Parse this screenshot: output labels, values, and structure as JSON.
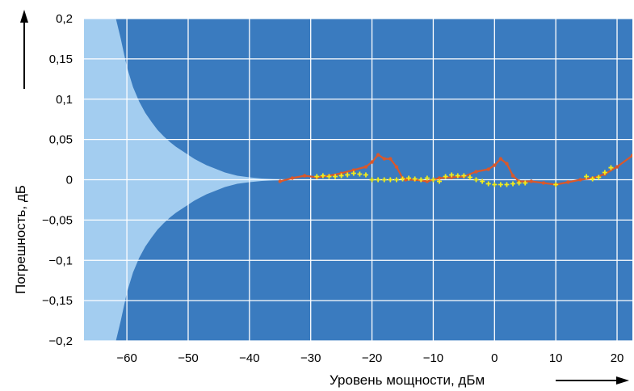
{
  "chart_data": {
    "type": "line",
    "title": "",
    "xlabel": "Уровень мощности, дБм",
    "ylabel": "Погрешность, дБ",
    "xlim": [
      -67,
      22.5
    ],
    "ylim": [
      -0.2,
      0.2
    ],
    "x_ticks": [
      -60,
      -50,
      -40,
      -30,
      -20,
      -10,
      0,
      10,
      20
    ],
    "y_ticks": [
      0.2,
      0.15,
      0.1,
      0.05,
      0,
      -0.05,
      -0.1,
      -0.15,
      -0.2
    ],
    "x_tick_labels": [
      "−60",
      "−50",
      "−40",
      "−30",
      "−20",
      "−10",
      "0",
      "10",
      "20"
    ],
    "y_tick_labels": [
      "0,2",
      "0,15",
      "0,1",
      "0,05",
      "0",
      "−0,05",
      "−0,1",
      "−0,15",
      "−0,2"
    ],
    "grid": true,
    "colors": {
      "background": "#3a7bbf",
      "uncertainty_band": "#a3cdf0",
      "grid": "#ffffff",
      "orange_series": "#d9582b",
      "yellow_series": "#f2ec1a"
    },
    "uncertainty_band": {
      "x": [
        -67,
        -61.8,
        -61,
        -60,
        -59,
        -58,
        -57,
        -56,
        -55,
        -54,
        -53,
        -52,
        -51,
        -50,
        -49,
        -48,
        -47,
        -46,
        -45,
        -44,
        -43,
        -42,
        -41,
        -40,
        -38,
        -36,
        -34
      ],
      "upper": [
        0.2,
        0.2,
        0.175,
        0.14,
        0.115,
        0.097,
        0.083,
        0.072,
        0.062,
        0.054,
        0.047,
        0.041,
        0.036,
        0.031,
        0.026,
        0.022,
        0.018,
        0.015,
        0.012,
        0.009,
        0.007,
        0.005,
        0.004,
        0.003,
        0.0015,
        0.0008,
        0.0004
      ]
    },
    "series": [
      {
        "x": [
          -35,
          -33,
          -31,
          -29,
          -27,
          -25,
          -23,
          -21,
          -20,
          -19,
          -18,
          -17,
          -16,
          -15,
          -14.5,
          -13,
          -11,
          -9,
          -7,
          -5,
          -3,
          -1,
          0,
          1,
          2,
          3,
          4,
          6,
          8,
          10,
          12,
          14,
          16,
          18,
          20,
          22.5
        ],
        "y": [
          -0.002,
          0.002,
          0.005,
          0.003,
          0.005,
          0.008,
          0.012,
          0.016,
          0.022,
          0.031,
          0.026,
          0.026,
          0.016,
          0.002,
          0.0,
          0.0,
          -0.002,
          0.002,
          0.003,
          0.004,
          0.01,
          0.013,
          0.018,
          0.026,
          0.02,
          0.005,
          -0.002,
          -0.002,
          -0.004,
          -0.006,
          -0.003,
          -0.0,
          0.002,
          0.007,
          0.016,
          0.03
        ],
        "markers": [
          -18.5,
          -16,
          -4,
          1
        ]
      },
      {
        "x": [
          -29,
          -28,
          -27,
          -26,
          -25,
          -24,
          -23,
          -22,
          -21,
          -20,
          -19,
          -18,
          -17,
          -16,
          -15,
          -14,
          -13,
          -12,
          -11,
          -10,
          -9,
          -8,
          -7,
          -6,
          -5,
          -4,
          -3,
          -2,
          -1,
          0,
          1,
          2,
          3,
          4,
          5,
          10,
          15,
          16,
          17,
          18,
          19
        ],
        "y": [
          0.004,
          0.005,
          0.004,
          0.004,
          0.005,
          0.006,
          0.008,
          0.007,
          0.006,
          0.0,
          0.0,
          0.0,
          0.0,
          0.0,
          0.001,
          0.002,
          0.001,
          0.0,
          0.002,
          0.0,
          -0.002,
          0.004,
          0.006,
          0.005,
          0.005,
          0.003,
          0.0,
          -0.002,
          -0.005,
          -0.006,
          -0.006,
          -0.006,
          -0.005,
          -0.004,
          -0.004,
          -0.006,
          0.004,
          0.001,
          0.003,
          0.009,
          0.015
        ]
      }
    ]
  }
}
